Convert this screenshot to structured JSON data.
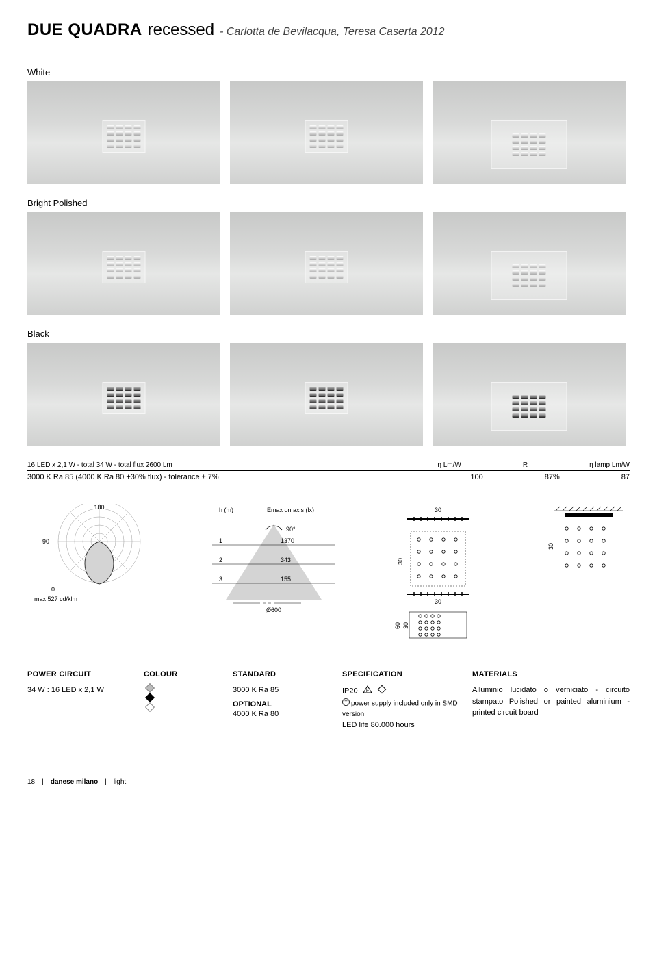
{
  "header": {
    "product_name": "DUE QUADRA",
    "variant": "recessed",
    "designers": "- Carlotta de Bevilacqua, Teresa Caserta 2012"
  },
  "finishes": {
    "rows": [
      {
        "label": "White",
        "class": "finish-white"
      },
      {
        "label": "Bright Polished",
        "class": "finish-polished"
      },
      {
        "label": "Black",
        "class": "finish-black"
      }
    ]
  },
  "spec": {
    "line1_left": "16 LED x 2,1 W - total 34 W - total flux 2600 Lm",
    "head_col1": "η Lm/W",
    "head_col2": "R",
    "head_col3": "η lamp Lm/W",
    "line2_left": "3000 K Ra 85 (4000 K Ra 80 +30% flux) - tolerance ± 7%",
    "val_col1": "100",
    "val_col2": "87%",
    "val_col3": "87"
  },
  "photometry": {
    "polar_180": "180",
    "polar_90": "90",
    "polar_0": "0",
    "polar_max": "max 527 cd/klm",
    "cone_h": "h (m)",
    "cone_emax": "Emax on axis (lx)",
    "cone_angle": "90°",
    "cone_rows": [
      {
        "h": "1",
        "e": "1370"
      },
      {
        "h": "2",
        "e": "343"
      },
      {
        "h": "3",
        "e": "155"
      }
    ],
    "cone_width": "Ø600"
  },
  "dimensions": {
    "top_h": "30",
    "side_w": "30",
    "bottom_w": "30",
    "side2_w": "30",
    "box_h": "60",
    "box_inner": "30"
  },
  "bottom": {
    "power_head": "POWER CIRCUIT",
    "power_val": "34 W : 16 LED x 2,1 W",
    "colour_head": "COLOUR",
    "standard_head": "STANDARD",
    "standard_val": "3000 K Ra 85",
    "optional_head": "OPTIONAL",
    "optional_val": "4000 K Ra 80",
    "spec_head": "SPECIFICATION",
    "spec_ip": "IP20",
    "spec_power": "power supply included only in SMD version",
    "spec_led": "LED life 80.000 hours",
    "materials_head": "MATERIALS",
    "materials_val": "Alluminio lucidato o verniciato - circuito stampato Polished or painted aluminium - printed circuit board"
  },
  "footer": {
    "page": "18",
    "brand": "danese milano",
    "section": "light"
  }
}
